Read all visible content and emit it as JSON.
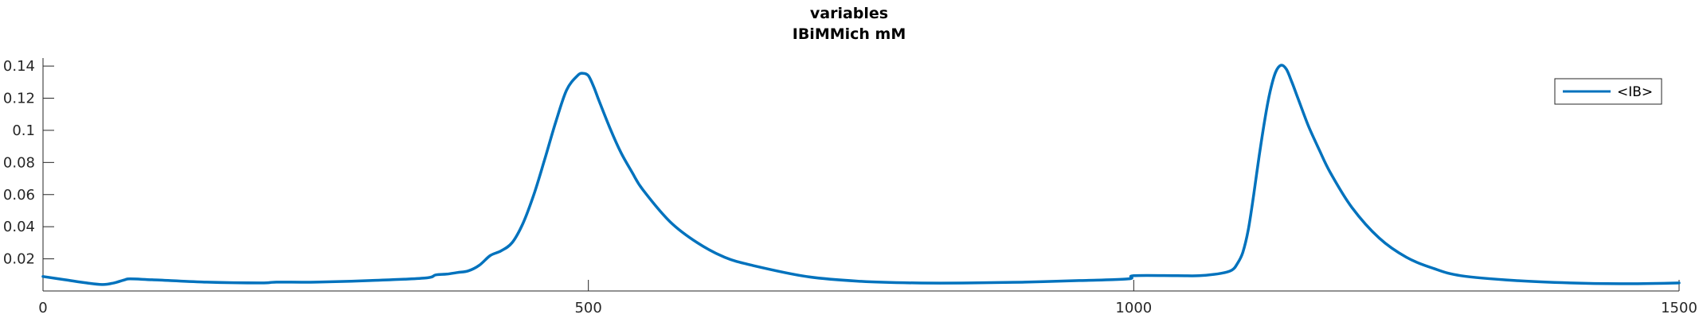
{
  "chart_data": {
    "type": "line",
    "title": "variables",
    "subtitle": "IBiMMich mM",
    "xlabel": "",
    "ylabel": "",
    "xlim": [
      0,
      1500
    ],
    "ylim": [
      0,
      0.145
    ],
    "x_ticks": [
      0,
      500,
      1000,
      1500
    ],
    "x_tick_labels": [
      "0",
      "500",
      "1000",
      "1500"
    ],
    "y_ticks": [
      0.02,
      0.04,
      0.06,
      0.08,
      0.1,
      0.12,
      0.14
    ],
    "y_tick_labels": [
      "0.02",
      "0.04",
      "0.06",
      "0.08",
      "0.1",
      "0.12",
      "0.14"
    ],
    "grid": false,
    "legend_position": "top-right",
    "series": [
      {
        "name": "<IB>",
        "color": "#0072bd",
        "x": [
          0,
          20,
          40,
          55,
          65,
          75,
          80,
          100,
          150,
          200,
          214,
          250,
          300,
          350,
          360,
          370,
          380,
          390,
          400,
          410,
          420,
          430,
          440,
          450,
          460,
          470,
          480,
          490,
          495,
          500,
          505,
          510,
          520,
          530,
          540,
          550,
          575,
          600,
          625,
          650,
          700,
          750,
          800,
          850,
          900,
          950,
          995,
          1000,
          1040,
          1060,
          1080,
          1090,
          1095,
          1100,
          1105,
          1110,
          1115,
          1120,
          1125,
          1130,
          1135,
          1140,
          1145,
          1150,
          1160,
          1170,
          1180,
          1200,
          1225,
          1250,
          1275,
          1300,
          1350,
          1400,
          1450,
          1500
        ],
        "y": [
          0.009,
          0.007,
          0.005,
          0.004,
          0.005,
          0.007,
          0.0075,
          0.007,
          0.0055,
          0.005,
          0.0055,
          0.0055,
          0.0065,
          0.008,
          0.01,
          0.0105,
          0.0115,
          0.0125,
          0.016,
          0.022,
          0.025,
          0.03,
          0.042,
          0.06,
          0.082,
          0.105,
          0.125,
          0.134,
          0.1355,
          0.134,
          0.127,
          0.118,
          0.101,
          0.086,
          0.074,
          0.063,
          0.043,
          0.03,
          0.021,
          0.016,
          0.009,
          0.006,
          0.005,
          0.005,
          0.0055,
          0.0065,
          0.0075,
          0.0095,
          0.0095,
          0.0095,
          0.011,
          0.013,
          0.017,
          0.024,
          0.038,
          0.06,
          0.084,
          0.106,
          0.124,
          0.136,
          0.1405,
          0.138,
          0.13,
          0.121,
          0.103,
          0.088,
          0.074,
          0.052,
          0.033,
          0.021,
          0.014,
          0.0095,
          0.0065,
          0.005,
          0.0045,
          0.005
        ]
      }
    ]
  }
}
